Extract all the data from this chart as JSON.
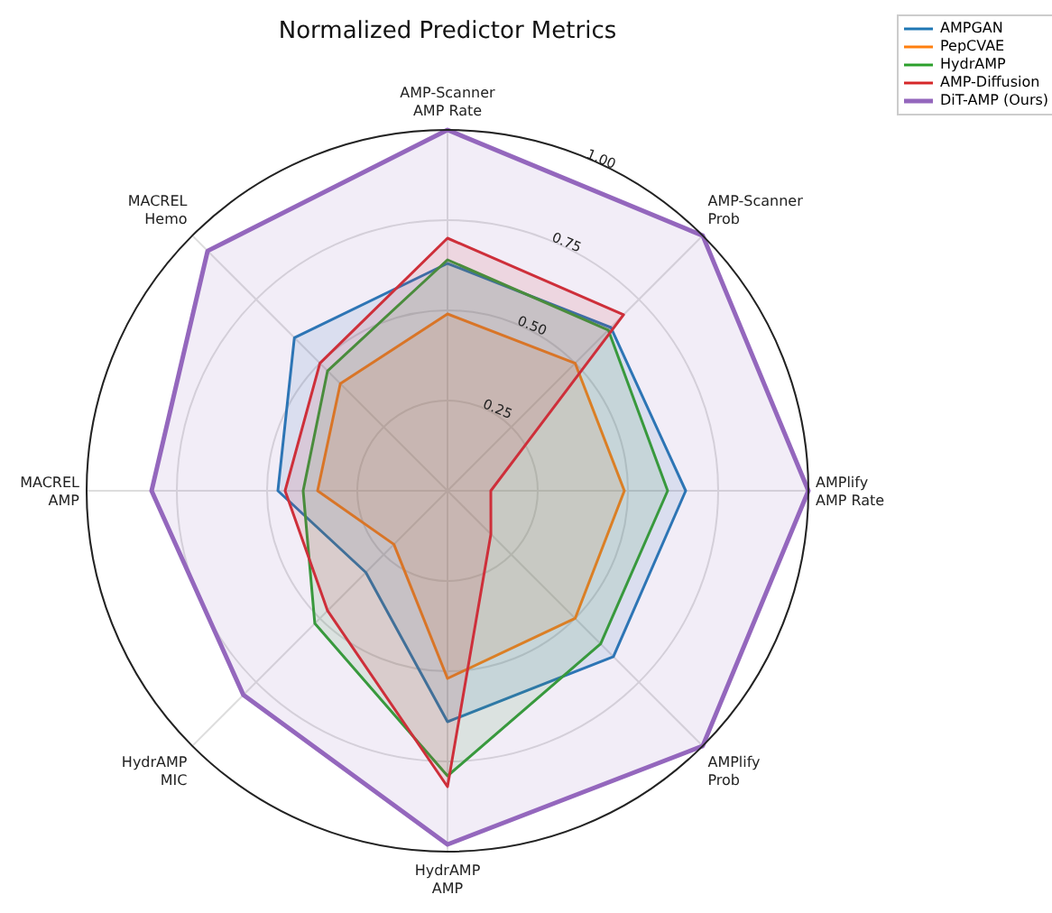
{
  "chart_data": {
    "type": "radar",
    "title": "Normalized Predictor Metrics",
    "categories": [
      "AMP-Scanner\nAMP Rate",
      "AMP-Scanner\nProb",
      "AMPlify\nAMP Rate",
      "AMPlify\nProb",
      "HydrAMP\nAMP",
      "HydrAMP\nMIC",
      "MACREL\nAMP",
      "MACREL\nHemo"
    ],
    "series": [
      {
        "name": "AMPGAN",
        "color": "#1f77b4",
        "values": [
          0.63,
          0.64,
          0.66,
          0.65,
          0.64,
          0.32,
          0.47,
          0.6
        ]
      },
      {
        "name": "PepCVAE",
        "color": "#ff7f0e",
        "values": [
          0.49,
          0.5,
          0.49,
          0.5,
          0.52,
          0.21,
          0.36,
          0.42
        ]
      },
      {
        "name": "HydrAMP",
        "color": "#2ca02c",
        "values": [
          0.64,
          0.63,
          0.61,
          0.6,
          0.79,
          0.52,
          0.4,
          0.47
        ]
      },
      {
        "name": "AMP-Diffusion",
        "color": "#d62728",
        "values": [
          0.7,
          0.69,
          0.12,
          0.17,
          0.82,
          0.47,
          0.45,
          0.5
        ]
      },
      {
        "name": "DiT-AMP (Ours)",
        "color": "#9467bd",
        "values": [
          1.0,
          1.0,
          1.0,
          1.0,
          0.98,
          0.8,
          0.82,
          0.94
        ]
      }
    ],
    "ylim": [
      0,
      1
    ],
    "yticks": [
      {
        "value": 0.25,
        "label": "0.25"
      },
      {
        "value": 0.5,
        "label": "0.50"
      },
      {
        "value": 0.75,
        "label": "0.75"
      },
      {
        "value": 1,
        "label": "1.00"
      }
    ],
    "grid": true,
    "legend": "top right"
  }
}
